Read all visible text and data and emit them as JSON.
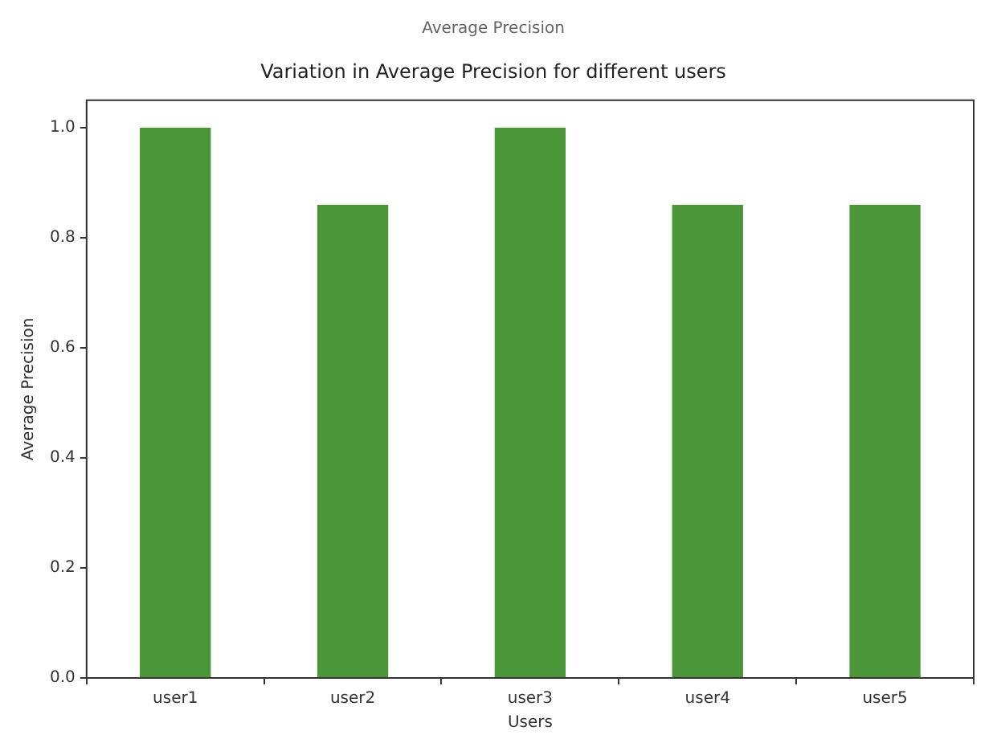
{
  "chart_data": {
    "type": "bar",
    "title": "Average Precision",
    "subtitle": "Variation in Average Precision for different users",
    "xlabel": "Users",
    "ylabel": "Average Precision",
    "categories": [
      "user1",
      "user2",
      "user3",
      "user4",
      "user5"
    ],
    "values": [
      1.0,
      0.86,
      1.0,
      0.86,
      0.86
    ],
    "color": "#4a9638",
    "ylim": [
      0,
      1.05
    ],
    "yticks": [
      {
        "value": 0,
        "label": "0.0"
      },
      {
        "value": 0.2,
        "label": "0.2"
      },
      {
        "value": 0.4,
        "label": "0.4"
      },
      {
        "value": 0.6,
        "label": "0.6"
      },
      {
        "value": 0.8,
        "label": "0.8"
      },
      {
        "value": 1,
        "label": "1.0"
      }
    ],
    "grid": false
  }
}
